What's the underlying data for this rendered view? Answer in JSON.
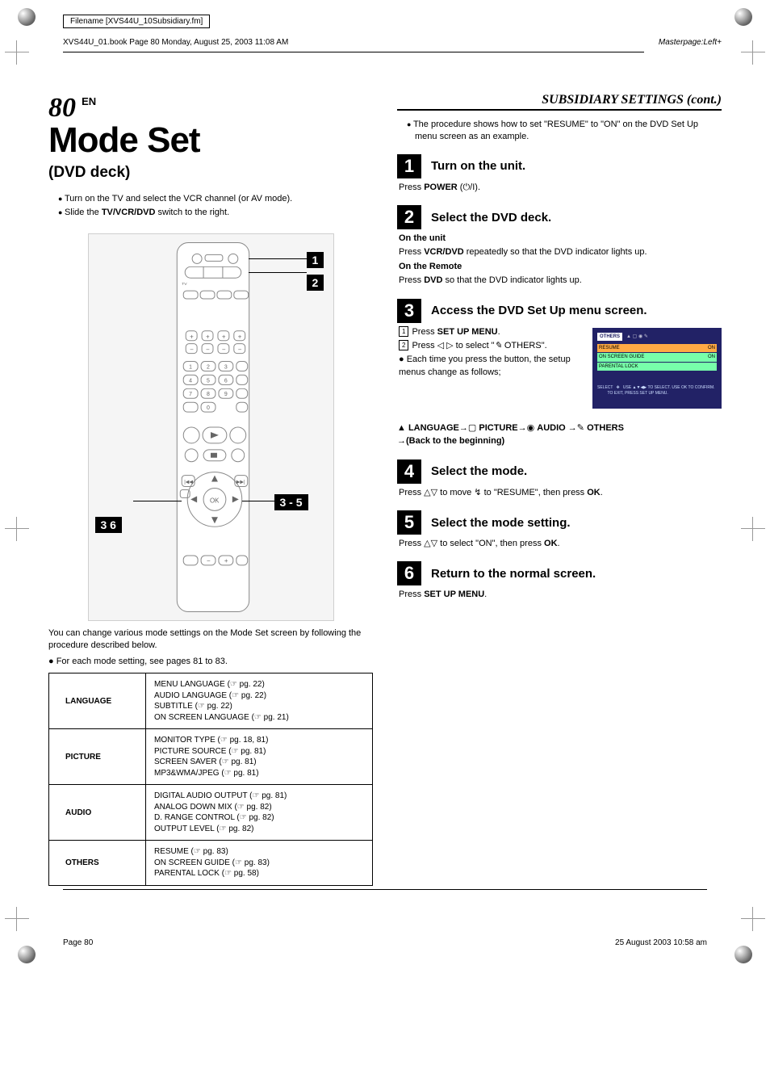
{
  "meta": {
    "filename": "Filename [XVS44U_10Subsidiary.fm]",
    "bookinfo": "XVS44U_01.book  Page 80  Monday, August 25, 2003  11:08 AM",
    "masterpage": "Masterpage:Left+"
  },
  "page_number": "80",
  "page_number_suffix": "EN",
  "section_header": "SUBSIDIARY SETTINGS (cont.)",
  "title": "Mode Set",
  "subtitle": "(DVD deck)",
  "intro_bullets": [
    "Turn on the TV and select the VCR channel (or AV mode).",
    "Slide the TV/VCR/DVD switch to the right."
  ],
  "remote_tags": [
    "1",
    "2",
    "3 - 5",
    "3 6"
  ],
  "after_remote_lines": [
    "You can change various mode settings on the Mode Set screen by following the procedure described below.",
    "For each mode setting, see pages 81 to 83."
  ],
  "settings_table": [
    {
      "cat": "LANGUAGE",
      "items": [
        {
          "t": "MENU LANGUAGE",
          "pg": "22"
        },
        {
          "t": "AUDIO LANGUAGE",
          "pg": "22"
        },
        {
          "t": "SUBTITLE",
          "pg": "22"
        },
        {
          "t": "ON SCREEN LANGUAGE",
          "pg": "21"
        }
      ]
    },
    {
      "cat": "PICTURE",
      "items": [
        {
          "t": "MONITOR TYPE",
          "pg": "18, 81"
        },
        {
          "t": "PICTURE SOURCE",
          "pg": "81"
        },
        {
          "t": "SCREEN SAVER",
          "pg": "81"
        },
        {
          "t": "MP3&WMA/JPEG",
          "pg": "81"
        }
      ]
    },
    {
      "cat": "AUDIO",
      "items": [
        {
          "t": "DIGITAL AUDIO OUTPUT",
          "pg": "81"
        },
        {
          "t": "ANALOG DOWN MIX",
          "pg": "82"
        },
        {
          "t": "D. RANGE CONTROL",
          "pg": "82"
        },
        {
          "t": "OUTPUT LEVEL",
          "pg": "82"
        }
      ]
    },
    {
      "cat": "OTHERS",
      "items": [
        {
          "t": "RESUME",
          "pg": "83"
        },
        {
          "t": "ON SCREEN GUIDE",
          "pg": "83"
        },
        {
          "t": "PARENTAL LOCK",
          "pg": "58"
        }
      ]
    }
  ],
  "right_intro": "The procedure shows how to set \"RESUME\" to \"ON\" on the DVD Set Up menu screen as an example.",
  "steps": [
    {
      "n": "1",
      "title": "Turn on the unit.",
      "body": [
        "Press <b>POWER</b> (⏻/I)."
      ]
    },
    {
      "n": "2",
      "title": "Select the DVD deck.",
      "subs": [
        {
          "h": "On the unit",
          "p": "Press <b>VCR/DVD</b> repeatedly so that the DVD indicator lights up."
        },
        {
          "h": "On the Remote",
          "p": "Press <b>DVD</b> so that the DVD indicator lights up."
        }
      ]
    },
    {
      "n": "3",
      "title": "Access the DVD Set Up menu screen.",
      "osd": true,
      "numbered": [
        "Press <b>SET UP MENU</b>.",
        "Press ◁ ▷ to select \"<i>✎</i> OTHERS\"."
      ],
      "bullets": [
        "Each time you press the button, the setup menus change as follows;"
      ]
    },
    {
      "n": "4",
      "title": "Select the mode.",
      "body": [
        "Press △▽ to move ↯ to \"RESUME\", then press <b>OK</b>."
      ]
    },
    {
      "n": "5",
      "title": "Select the mode setting.",
      "body": [
        "Press △▽ to select \"ON\", then press <b>OK</b>."
      ]
    },
    {
      "n": "6",
      "title": "Return to the normal screen.",
      "body": [
        "Press <b>SET UP MENU</b>."
      ]
    }
  ],
  "menu_chain": {
    "items": [
      "LANGUAGE",
      "PICTURE",
      "AUDIO",
      "OTHERS"
    ],
    "tail": "(Back to the beginning)"
  },
  "osd": {
    "title": "OTHERS",
    "rows": [
      {
        "l": "RESUME",
        "r": "ON",
        "sel": true
      },
      {
        "l": "ON SCREEN GUIDE",
        "r": "ON",
        "sel": false
      },
      {
        "l": "PARENTAL LOCK",
        "r": "",
        "sel": false
      }
    ],
    "foot1": "SELECT",
    "foot2": "USE ▲▼◀▶ TO SELECT. USE OK TO CONFIRM.",
    "foot3": "TO EXIT, PRESS SET UP MENU."
  },
  "footer": {
    "left": "Page 80",
    "right": "25 August 2003 10:58 am"
  },
  "colors": {
    "osd_bg": "#223388",
    "osd_row": "#7fffaa",
    "osd_sel": "#ff9944"
  }
}
